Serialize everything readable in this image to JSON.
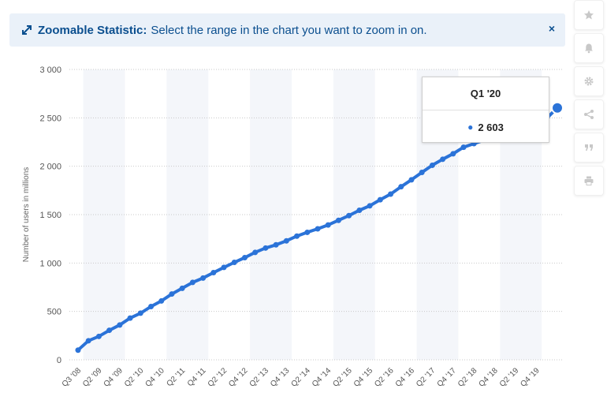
{
  "banner": {
    "title": "Zoomable Statistic:",
    "text": "Select the range in the chart you want to zoom in on.",
    "close": "×",
    "color": "#0b4f8f",
    "background": "#eaf1f9"
  },
  "toolbar": {
    "icons": [
      "star-icon",
      "bell-icon",
      "gear-icon",
      "share-icon",
      "quote-icon",
      "print-icon"
    ]
  },
  "tooltip": {
    "period": "Q1 '20",
    "value": "2 603"
  },
  "chart_data": {
    "type": "line",
    "title": "",
    "ylabel": "Number of users in millions",
    "xlabel": "",
    "ylim": [
      0,
      3000
    ],
    "yticks": [
      0,
      500,
      1000,
      1500,
      2000,
      2500,
      3000
    ],
    "ytick_labels": [
      "0",
      "500",
      "1 000",
      "1 500",
      "2 000",
      "2 500",
      "3 000"
    ],
    "xtick_labels": [
      "Q3 '08",
      "Q2 '09",
      "Q4 '09",
      "Q2 '10",
      "Q4 '10",
      "Q2 '11",
      "Q4 '11",
      "Q2 '12",
      "Q4 '12",
      "Q2 '13",
      "Q4 '13",
      "Q2 '14",
      "Q4 '14",
      "Q2 '15",
      "Q4 '15",
      "Q2 '16",
      "Q4 '16",
      "Q2 '17",
      "Q4 '17",
      "Q2 '18",
      "Q4 '18",
      "Q2 '19",
      "Q4 '19"
    ],
    "grid": true,
    "line_color": "#2b73d8",
    "categories": [
      "Q3 '08",
      "Q4 '08",
      "Q1 '09",
      "Q2 '09",
      "Q3 '09",
      "Q4 '09",
      "Q1 '10",
      "Q2 '10",
      "Q3 '10",
      "Q4 '10",
      "Q1 '11",
      "Q2 '11",
      "Q3 '11",
      "Q4 '11",
      "Q1 '12",
      "Q2 '12",
      "Q3 '12",
      "Q4 '12",
      "Q1 '13",
      "Q2 '13",
      "Q3 '13",
      "Q4 '13",
      "Q1 '14",
      "Q2 '14",
      "Q3 '14",
      "Q4 '14",
      "Q1 '15",
      "Q2 '15",
      "Q3 '15",
      "Q4 '15",
      "Q1 '16",
      "Q2 '16",
      "Q3 '16",
      "Q4 '16",
      "Q1 '17",
      "Q2 '17",
      "Q3 '17",
      "Q4 '17",
      "Q1 '18",
      "Q2 '18",
      "Q3 '18",
      "Q4 '18",
      "Q1 '19",
      "Q2 '19",
      "Q3 '19",
      "Q4 '19",
      "Q1 '20"
    ],
    "series": [
      {
        "values": [
          100,
          197,
          242,
          305,
          360,
          431,
          482,
          550,
          608,
          680,
          739,
          800,
          845,
          901,
          955,
          1007,
          1056,
          1110,
          1155,
          1188,
          1229,
          1278,
          1317,
          1353,
          1393,
          1441,
          1490,
          1545,
          1591,
          1654,
          1712,
          1788,
          1860,
          1936,
          2010,
          2072,
          2129,
          2196,
          2234,
          2270,
          2314,
          2320,
          2375,
          2414,
          2450,
          2498,
          2603
        ]
      }
    ]
  }
}
